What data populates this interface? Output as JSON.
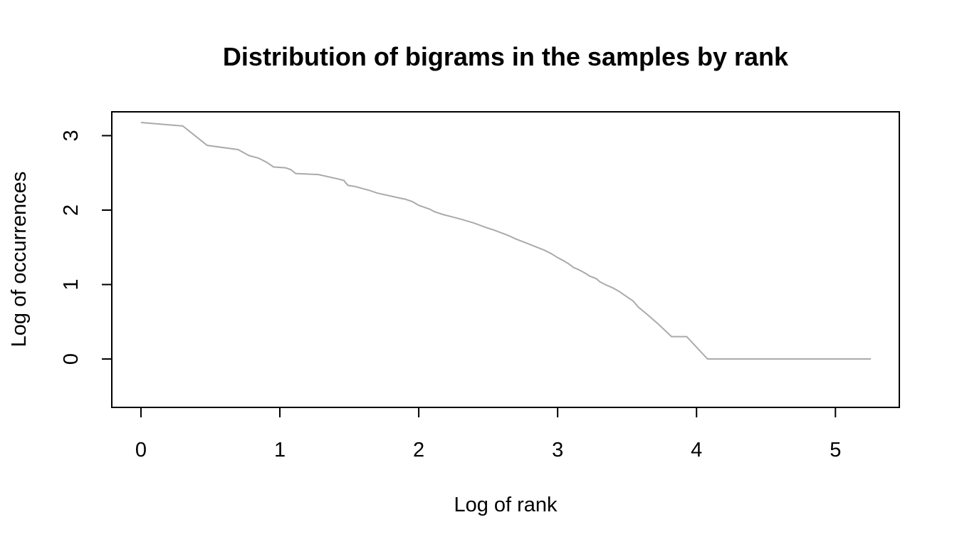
{
  "chart_data": {
    "type": "line",
    "title": "Distribution of bigrams in the samples by rank",
    "xlabel": "Log of rank",
    "ylabel": "Log of occurrences",
    "xlim": [
      -0.21,
      5.46
    ],
    "ylim": [
      -0.65,
      3.32
    ],
    "xticks": [
      0,
      1,
      2,
      3,
      4,
      5
    ],
    "yticks": [
      0,
      1,
      2,
      3
    ],
    "grid": false,
    "legend": "none",
    "line_color": "#aaaaaa",
    "series": [
      {
        "x": [
          0,
          0.301,
          0.477,
          0.699,
          0.778,
          0.845,
          0.903,
          0.954,
          1.041,
          1.079,
          1.114,
          1.279,
          1.415,
          1.462,
          1.477,
          1.491,
          1.544,
          1.653,
          1.699,
          1.82,
          1.903,
          1.954,
          2.0,
          2.079,
          2.114,
          2.176,
          2.301,
          2.398,
          2.477,
          2.544,
          2.602,
          2.653,
          2.699,
          2.778,
          2.845,
          2.903,
          2.954,
          3.0,
          3.041,
          3.079,
          3.114,
          3.146,
          3.176,
          3.204,
          3.23,
          3.279,
          3.301,
          3.342,
          3.398,
          3.447,
          3.491,
          3.544,
          3.58,
          3.643,
          3.72,
          3.82,
          3.929,
          4.079,
          4.255,
          4.538,
          4.538,
          5.255
        ],
        "y": [
          3.176,
          3.13,
          2.869,
          2.813,
          2.732,
          2.699,
          2.644,
          2.58,
          2.568,
          2.544,
          2.491,
          2.477,
          2.42,
          2.398,
          2.36,
          2.332,
          2.316,
          2.26,
          2.23,
          2.179,
          2.146,
          2.114,
          2.064,
          2.013,
          1.978,
          1.94,
          1.88,
          1.826,
          1.771,
          1.73,
          1.69,
          1.653,
          1.612,
          1.556,
          1.505,
          1.462,
          1.415,
          1.362,
          1.322,
          1.279,
          1.23,
          1.204,
          1.176,
          1.146,
          1.114,
          1.079,
          1.041,
          1.0,
          0.954,
          0.903,
          0.845,
          0.778,
          0.699,
          0.602,
          0.477,
          0.301,
          0.301,
          0.0,
          0.0,
          0.0,
          0.0,
          0.0
        ]
      }
    ]
  }
}
